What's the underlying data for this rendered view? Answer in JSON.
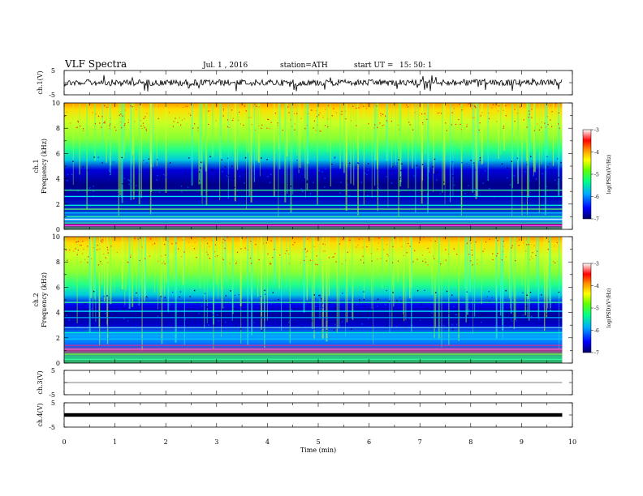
{
  "header": {
    "title": "VLF  Spectra",
    "date": "Jul.  1  , 2016",
    "station": "station=ATH",
    "start_label": "start  UT  =",
    "start_time": "15: 50: 1"
  },
  "colors": {
    "spectrogram_scale": [
      "#000066",
      "#0000ff",
      "#00aaff",
      "#00ff88",
      "#66ff00",
      "#ffff00",
      "#ff8800",
      "#ff0000",
      "#ffffff"
    ],
    "trace": "#000000"
  },
  "chart_data": [
    {
      "type": "line",
      "panel": "ch1-waveform",
      "ylabel": "ch.1(V)",
      "ylim": [
        -5,
        5
      ],
      "yticks": [
        "5",
        "-5"
      ],
      "description_values": {
        "baseline": 0,
        "noise_amplitude": 1.2
      }
    },
    {
      "type": "heatmap",
      "panel": "ch1-spectrogram",
      "ylabel": "ch.1\nFrequency (kHz)",
      "ylabel_line1": "ch.1",
      "ylabel_line2": "Frequency  (kHz)",
      "ylim": [
        0,
        10
      ],
      "yticks": [
        "0",
        "2",
        "4",
        "6",
        "8",
        "10"
      ],
      "colorbar": {
        "label": "log(PSD)(V²/Hz)",
        "range": [
          -7,
          -3
        ],
        "ticks": [
          "-3",
          "-4",
          "-5",
          "-6",
          "-7"
        ]
      }
    },
    {
      "type": "heatmap",
      "panel": "ch2-spectrogram",
      "ylabel_line1": "ch.2",
      "ylabel_line2": "Frequency  (kHz)",
      "ylim": [
        0,
        10
      ],
      "yticks": [
        "0",
        "2",
        "4",
        "6",
        "8",
        "10"
      ],
      "colorbar": {
        "label": "log(PSD)(V²/Hz)",
        "range": [
          -7,
          -3
        ],
        "ticks": [
          "-3",
          "-4",
          "-5",
          "-6",
          "-7"
        ]
      }
    },
    {
      "type": "line",
      "panel": "ch3-waveform",
      "ylabel": "ch.3(V)",
      "ylim": [
        -5,
        5
      ],
      "yticks": [
        "5",
        "-5"
      ],
      "description_values": {
        "baseline": 0
      }
    },
    {
      "type": "line",
      "panel": "ch4-waveform",
      "ylabel": "ch.4(V)",
      "ylim": [
        -5,
        5
      ],
      "yticks": [
        "5",
        "-5"
      ],
      "description_values": {
        "baseline": 0
      }
    },
    {
      "type": "axis",
      "panel": "time-axis",
      "xlabel": "Time  (min)",
      "xlim": [
        0,
        10
      ],
      "xticks": [
        "0",
        "1",
        "2",
        "3",
        "4",
        "5",
        "6",
        "7",
        "8",
        "9",
        "10"
      ],
      "data_end": 9.8
    }
  ]
}
